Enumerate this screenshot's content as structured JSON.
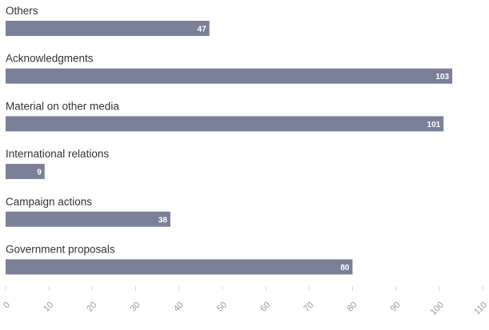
{
  "chart_data": {
    "type": "bar",
    "orientation": "horizontal",
    "categories": [
      "Others",
      "Acknowledgments",
      "Material on other media",
      "International relations",
      "Campaign actions",
      "Government proposals"
    ],
    "values": [
      47,
      103,
      101,
      9,
      38,
      80
    ],
    "xlim": [
      0,
      110
    ],
    "x_ticks": [
      "0",
      "10",
      "20",
      "30",
      "40",
      "50",
      "60",
      "70",
      "80",
      "90",
      "100",
      "110"
    ],
    "grid": false,
    "legend": "none",
    "data_labels": "inside-end"
  },
  "colors": {
    "bar": "#7b8099",
    "value_label": "#ffffff",
    "category_label": "#333333",
    "tick_label": "#999999"
  }
}
